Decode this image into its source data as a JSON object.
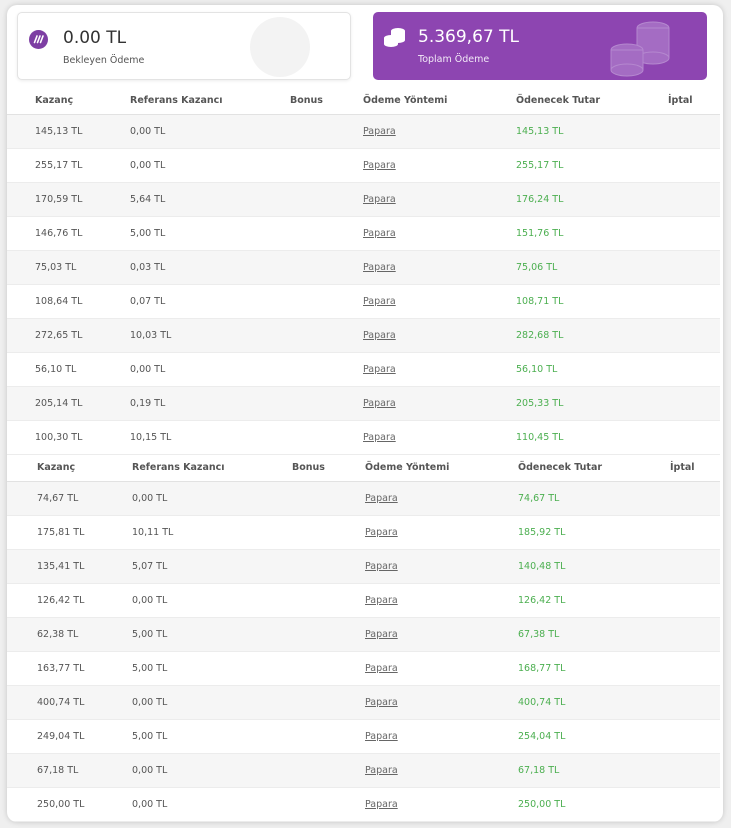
{
  "summary": {
    "pending": {
      "amount": "0.00 TL",
      "label": "Bekleyen Ödeme"
    },
    "total": {
      "amount": "5.369,67 TL",
      "label": "Toplam Ödeme"
    }
  },
  "colors": {
    "accent": "#8d45b1",
    "positive": "#4caf50"
  },
  "headers": [
    "Kazanç",
    "Referans Kazancı",
    "Bonus",
    "Ödeme Yöntemi",
    "Ödenecek Tutar",
    "İptal"
  ],
  "table1": [
    {
      "earning": "145,13 TL",
      "referral": "0,00 TL",
      "bonus": "",
      "method": "Papara",
      "payable": "145,13 TL",
      "cancel": ""
    },
    {
      "earning": "255,17 TL",
      "referral": "0,00 TL",
      "bonus": "",
      "method": "Papara",
      "payable": "255,17 TL",
      "cancel": ""
    },
    {
      "earning": "170,59 TL",
      "referral": "5,64 TL",
      "bonus": "",
      "method": "Papara",
      "payable": "176,24 TL",
      "cancel": ""
    },
    {
      "earning": "146,76 TL",
      "referral": "5,00 TL",
      "bonus": "",
      "method": "Papara",
      "payable": "151,76 TL",
      "cancel": ""
    },
    {
      "earning": "75,03 TL",
      "referral": "0,03 TL",
      "bonus": "",
      "method": "Papara",
      "payable": "75,06 TL",
      "cancel": ""
    },
    {
      "earning": "108,64 TL",
      "referral": "0,07 TL",
      "bonus": "",
      "method": "Papara",
      "payable": "108,71 TL",
      "cancel": ""
    },
    {
      "earning": "272,65 TL",
      "referral": "10,03 TL",
      "bonus": "",
      "method": "Papara",
      "payable": "282,68 TL",
      "cancel": ""
    },
    {
      "earning": "56,10 TL",
      "referral": "0,00 TL",
      "bonus": "",
      "method": "Papara",
      "payable": "56,10 TL",
      "cancel": ""
    },
    {
      "earning": "205,14 TL",
      "referral": "0,19 TL",
      "bonus": "",
      "method": "Papara",
      "payable": "205,33 TL",
      "cancel": ""
    },
    {
      "earning": "100,30 TL",
      "referral": "10,15 TL",
      "bonus": "",
      "method": "Papara",
      "payable": "110,45 TL",
      "cancel": ""
    }
  ],
  "table2": [
    {
      "earning": "74,67 TL",
      "referral": "0,00 TL",
      "bonus": "",
      "method": "Papara",
      "payable": "74,67 TL",
      "cancel": ""
    },
    {
      "earning": "175,81 TL",
      "referral": "10,11 TL",
      "bonus": "",
      "method": "Papara",
      "payable": "185,92 TL",
      "cancel": ""
    },
    {
      "earning": "135,41 TL",
      "referral": "5,07 TL",
      "bonus": "",
      "method": "Papara",
      "payable": "140,48 TL",
      "cancel": ""
    },
    {
      "earning": "126,42 TL",
      "referral": "0,00 TL",
      "bonus": "",
      "method": "Papara",
      "payable": "126,42 TL",
      "cancel": ""
    },
    {
      "earning": "62,38 TL",
      "referral": "5,00 TL",
      "bonus": "",
      "method": "Papara",
      "payable": "67,38 TL",
      "cancel": ""
    },
    {
      "earning": "163,77 TL",
      "referral": "5,00 TL",
      "bonus": "",
      "method": "Papara",
      "payable": "168,77 TL",
      "cancel": ""
    },
    {
      "earning": "400,74 TL",
      "referral": "0,00 TL",
      "bonus": "",
      "method": "Papara",
      "payable": "400,74 TL",
      "cancel": ""
    },
    {
      "earning": "249,04 TL",
      "referral": "5,00 TL",
      "bonus": "",
      "method": "Papara",
      "payable": "254,04 TL",
      "cancel": ""
    },
    {
      "earning": "67,18 TL",
      "referral": "0,00 TL",
      "bonus": "",
      "method": "Papara",
      "payable": "67,18 TL",
      "cancel": ""
    },
    {
      "earning": "250,00 TL",
      "referral": "0,00 TL",
      "bonus": "",
      "method": "Papara",
      "payable": "250,00 TL",
      "cancel": ""
    }
  ],
  "icons": {
    "pending": "papara-logo-icon",
    "total": "coins-icon"
  }
}
